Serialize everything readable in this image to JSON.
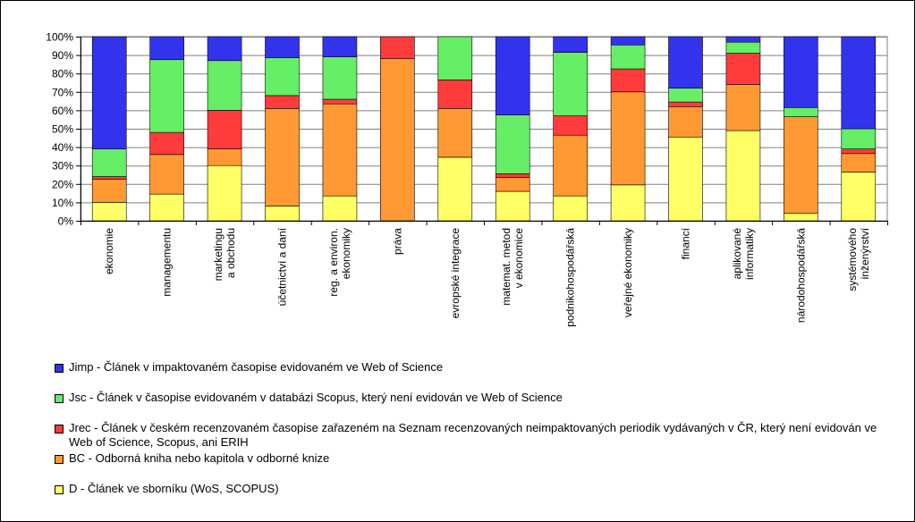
{
  "chart_data": {
    "type": "bar",
    "stacked": "percent",
    "categories": [
      [
        "ekonomie"
      ],
      [
        "managementu"
      ],
      [
        "marketingu",
        "a obchodu"
      ],
      [
        "účetnictví a daní"
      ],
      [
        "reg. a environ.",
        "ekonomiky"
      ],
      [
        "práva"
      ],
      [
        "evropské integrace"
      ],
      [
        "matemat. metod",
        "v ekonomice"
      ],
      [
        "podnikohospodářská"
      ],
      [
        "veřejné ekonomiky"
      ],
      [
        "financí"
      ],
      [
        "aplikované",
        "informatiky"
      ],
      [
        "národohospodářská"
      ],
      [
        "systémového",
        "inženýrství"
      ]
    ],
    "yticks": [
      "0%",
      "10%",
      "20%",
      "30%",
      "40%",
      "50%",
      "60%",
      "70%",
      "80%",
      "90%",
      "100%"
    ],
    "ylim": [
      0,
      100
    ],
    "grid": true,
    "legend_position": "bottom",
    "series": [
      {
        "name": "D - Článek ve sborníku (WoS, SCOPUS)",
        "color": "#FFFF66",
        "values": [
          10,
          14.5,
          30,
          8,
          13.5,
          0,
          34.5,
          16,
          13.5,
          19.5,
          45.5,
          49,
          4,
          26.5
        ]
      },
      {
        "name": "BC - Odborná kniha nebo kapitola v odborné knize",
        "color": "#FF9933",
        "values": [
          12.5,
          21.5,
          9,
          53,
          50,
          88,
          26.5,
          7.5,
          33,
          50.5,
          16.5,
          25,
          52.5,
          10
        ]
      },
      {
        "name": "Jrec - Článek v českém recenzovaném časopise zařazeném na Seznam recenzovaných neimpaktovaných periodik vydávaných v ČR, který není evidován ve Web of Science, Scopus, ani ERIH",
        "color": "#FF3B3B",
        "values": [
          1.5,
          12,
          21,
          7,
          2.5,
          12,
          15.5,
          2,
          10.5,
          12.5,
          2.5,
          17,
          0,
          2.5
        ]
      },
      {
        "name": "Jsc - Článek v časopise evidovaném v databázi Scopus, který není evidován ve Web of Science",
        "color": "#66EE66",
        "values": [
          15,
          39.5,
          27,
          20.5,
          23,
          0,
          23.5,
          32,
          34.5,
          13,
          7.5,
          6,
          5,
          11
        ]
      },
      {
        "name": "Jimp - Článek v impaktovaném časopise evidovaném ve Web of Science",
        "color": "#3333EE",
        "values": [
          61,
          12.5,
          13,
          11.5,
          11,
          0,
          0,
          42.5,
          8.5,
          4.5,
          28,
          3,
          38.5,
          50
        ]
      }
    ]
  },
  "legend": {
    "order": [
      4,
      3,
      2,
      1,
      0
    ]
  }
}
